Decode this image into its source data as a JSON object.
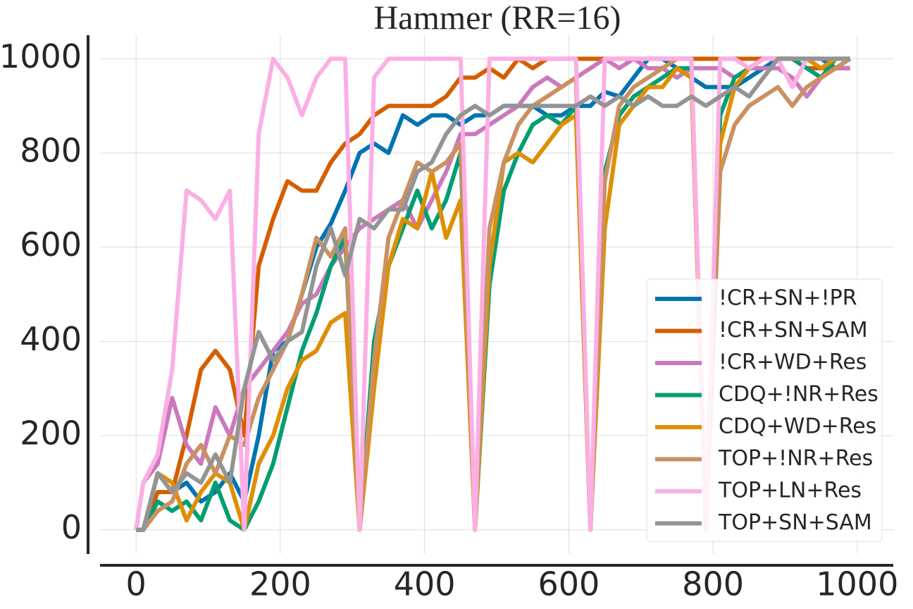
{
  "chart_data": {
    "type": "line",
    "title": "Hammer (RR=16)",
    "x": [
      0,
      10,
      30,
      50,
      70,
      90,
      110,
      130,
      150,
      170,
      190,
      210,
      230,
      250,
      270,
      290,
      310,
      330,
      350,
      370,
      390,
      410,
      430,
      450,
      470,
      490,
      510,
      530,
      550,
      570,
      590,
      610,
      630,
      650,
      670,
      690,
      710,
      730,
      750,
      770,
      790,
      810,
      830,
      850,
      870,
      890,
      910,
      930,
      950,
      970,
      990
    ],
    "xlim": [
      -50,
      1050
    ],
    "xticks": [
      0,
      200,
      400,
      600,
      800,
      1000
    ],
    "ylim": [
      -50,
      1050
    ],
    "yticks": [
      0,
      200,
      400,
      600,
      800,
      1000
    ],
    "grid": true,
    "legend": "lower right",
    "series": [
      {
        "name": "!CR+SN+!PR",
        "color": "#0173b2",
        "values": [
          0,
          0,
          120,
          80,
          100,
          60,
          80,
          120,
          60,
          200,
          380,
          400,
          500,
          600,
          650,
          720,
          800,
          820,
          800,
          880,
          860,
          880,
          880,
          860,
          880,
          880,
          900,
          900,
          900,
          880,
          880,
          900,
          900,
          930,
          920,
          960,
          1000,
          1000,
          980,
          960,
          940,
          940,
          940,
          960,
          980,
          1000,
          1000,
          1000,
          1000,
          980,
          1000
        ]
      },
      {
        "name": "!CR+SN+SAM",
        "color": "#d55e00",
        "values": [
          0,
          0,
          80,
          80,
          200,
          340,
          380,
          340,
          200,
          560,
          660,
          740,
          720,
          720,
          780,
          820,
          840,
          880,
          900,
          900,
          900,
          900,
          920,
          960,
          960,
          980,
          960,
          1000,
          980,
          1000,
          1000,
          1000,
          1000,
          1000,
          1000,
          1000,
          1000,
          1000,
          1000,
          1000,
          1000,
          1000,
          1000,
          1000,
          1000,
          1000,
          1000,
          980,
          980,
          980,
          980
        ]
      },
      {
        "name": "!CR+WD+Res",
        "color": "#cc78bc",
        "values": [
          0,
          100,
          140,
          280,
          180,
          140,
          260,
          200,
          300,
          340,
          380,
          420,
          480,
          500,
          560,
          600,
          640,
          660,
          680,
          700,
          640,
          700,
          760,
          840,
          840,
          860,
          880,
          900,
          940,
          960,
          940,
          960,
          980,
          1000,
          980,
          1000,
          980,
          980,
          960,
          980,
          980,
          980,
          960,
          980,
          980,
          980,
          960,
          920,
          960,
          980,
          980
        ]
      },
      {
        "name": "CDQ+!NR+Res",
        "color": "#029e73",
        "values": [
          0,
          0,
          60,
          40,
          60,
          20,
          100,
          20,
          0,
          60,
          140,
          260,
          380,
          460,
          560,
          620,
          0,
          400,
          560,
          640,
          720,
          640,
          700,
          800,
          0,
          520,
          720,
          800,
          860,
          880,
          860,
          900,
          0,
          760,
          880,
          920,
          940,
          960,
          980,
          980,
          0,
          880,
          960,
          980,
          1000,
          1000,
          1000,
          980,
          960,
          1000,
          1000
        ]
      },
      {
        "name": "CDQ+WD+Res",
        "color": "#de8f05",
        "values": [
          0,
          0,
          120,
          100,
          20,
          80,
          120,
          100,
          0,
          140,
          200,
          300,
          360,
          380,
          440,
          460,
          0,
          300,
          560,
          660,
          640,
          760,
          620,
          700,
          0,
          560,
          780,
          800,
          780,
          820,
          860,
          880,
          0,
          640,
          860,
          900,
          940,
          940,
          980,
          960,
          0,
          820,
          940,
          980,
          1000,
          1000,
          1000,
          1000,
          980,
          1000,
          1000
        ]
      },
      {
        "name": "TOP+!NR+Res",
        "color": "#ca9161",
        "values": [
          0,
          0,
          40,
          60,
          140,
          180,
          120,
          200,
          180,
          280,
          340,
          400,
          500,
          620,
          580,
          640,
          0,
          360,
          620,
          700,
          780,
          760,
          780,
          820,
          0,
          640,
          780,
          860,
          900,
          920,
          940,
          960,
          0,
          740,
          900,
          940,
          960,
          980,
          1000,
          1000,
          0,
          760,
          860,
          900,
          920,
          940,
          900,
          940,
          960,
          980,
          1000
        ]
      },
      {
        "name": "TOP+LN+Res",
        "color": "#fbafe4",
        "values": [
          0,
          100,
          160,
          340,
          720,
          700,
          660,
          720,
          0,
          840,
          1000,
          960,
          880,
          960,
          1000,
          1000,
          0,
          960,
          1000,
          1000,
          1000,
          1000,
          1000,
          1000,
          0,
          1000,
          1000,
          1000,
          1000,
          1000,
          1000,
          1000,
          0,
          1000,
          1000,
          1000,
          1000,
          1000,
          1000,
          1000,
          0,
          1000,
          1000,
          980,
          1000,
          1000,
          940,
          1000,
          1000,
          1000,
          1000
        ]
      },
      {
        "name": "TOP+SN+SAM",
        "color": "#949494",
        "values": [
          0,
          0,
          120,
          80,
          120,
          100,
          160,
          100,
          300,
          420,
          360,
          400,
          420,
          560,
          640,
          540,
          660,
          640,
          680,
          680,
          760,
          780,
          840,
          880,
          900,
          880,
          900,
          900,
          900,
          900,
          900,
          900,
          920,
          900,
          920,
          900,
          920,
          900,
          900,
          920,
          900,
          920,
          940,
          920,
          960,
          1000,
          1000,
          1000,
          1000,
          1000,
          1000
        ]
      }
    ]
  }
}
